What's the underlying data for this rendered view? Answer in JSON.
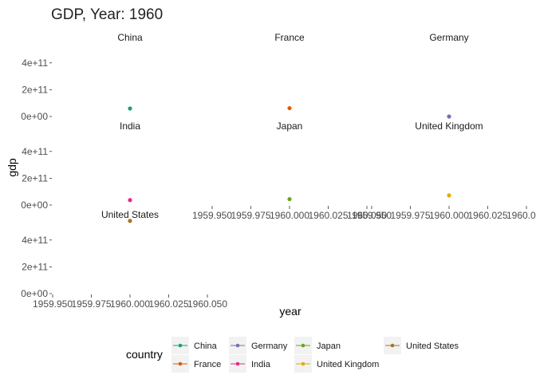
{
  "chart_data": {
    "type": "scatter",
    "title": "GDP, Year: 1960",
    "xlabel": "year",
    "ylabel": "gdp",
    "xlim": [
      1959.95,
      1960.05
    ],
    "ylim": [
      0,
      500000000000
    ],
    "x_ticks": [
      "1959.950",
      "1959.975",
      "1960.000",
      "1960.025",
      "1960.050"
    ],
    "x_tick_values": [
      1959.95,
      1959.975,
      1960.0,
      1960.025,
      1960.05
    ],
    "y_ticks": [
      "0e+00",
      "2e+11",
      "4e+11"
    ],
    "y_tick_values": [
      0,
      200000000000,
      400000000000
    ],
    "grid": false,
    "legend_title": "country",
    "legend_position": "bottom",
    "panels": [
      {
        "label": "China",
        "color": "#1b9e77",
        "x": 1960,
        "y": 59700000000
      },
      {
        "label": "France",
        "color": "#d95f02",
        "x": 1960,
        "y": 62200000000
      },
      {
        "label": "Germany",
        "color": "#7570b3",
        "x": 1960,
        "y": 0
      },
      {
        "label": "India",
        "color": "#e7298a",
        "x": 1960,
        "y": 37000000000
      },
      {
        "label": "Japan",
        "color": "#66a61e",
        "x": 1960,
        "y": 44300000000
      },
      {
        "label": "United Kingdom",
        "color": "#e6ab02",
        "x": 1960,
        "y": 72300000000
      },
      {
        "label": "United States",
        "color": "#a6761d",
        "x": 1960,
        "y": 543000000000
      }
    ]
  }
}
